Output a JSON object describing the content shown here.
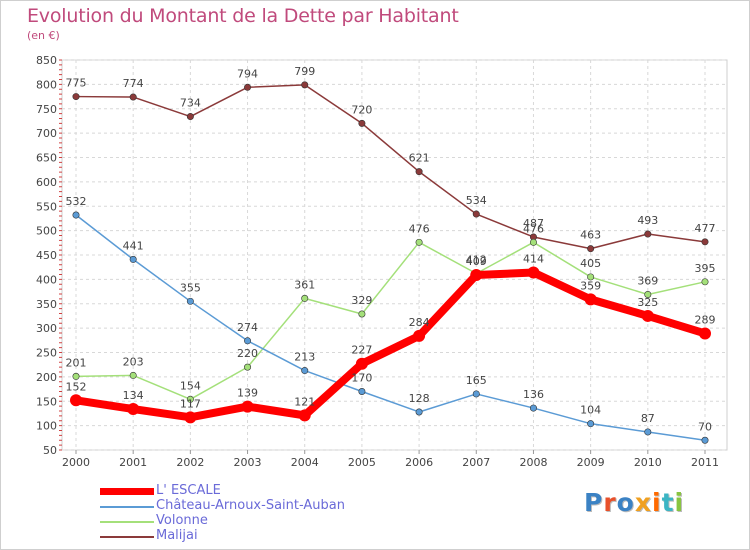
{
  "header": {
    "title": "Evolution du Montant de la Dette par Habitant",
    "subtitle": "(en €)"
  },
  "logo": {
    "text": "Proxiti"
  },
  "chart_data": {
    "type": "line",
    "title": "Evolution du Montant de la Dette par Habitant",
    "subtitle": "(en €)",
    "x": [
      "2000",
      "2001",
      "2002",
      "2003",
      "2004",
      "2005",
      "2006",
      "2007",
      "2008",
      "2009",
      "2010",
      "2011"
    ],
    "ylim": [
      50,
      850
    ],
    "yticks": [
      "50",
      "100",
      "150",
      "200",
      "250",
      "300",
      "350",
      "400",
      "450",
      "500",
      "550",
      "600",
      "650",
      "700",
      "750",
      "800",
      "850"
    ],
    "grid": true,
    "legend": "bottom-left",
    "series": [
      {
        "name": "L' ESCALE",
        "color": "#ff0000",
        "values": [
          152,
          134,
          117,
          139,
          121,
          227,
          284,
          409,
          414,
          359,
          325,
          289
        ],
        "labels": [
          "152",
          "134",
          "117",
          "139",
          "121",
          "227",
          "284",
          "409",
          "414",
          "359",
          "325",
          "289"
        ]
      },
      {
        "name": "Château-Arnoux-Saint-Auban",
        "color": "#5b9bd5",
        "values": [
          532,
          441,
          355,
          274,
          213,
          170,
          128,
          165,
          136,
          104,
          87,
          70
        ],
        "labels": [
          "532",
          "441",
          "355",
          "274",
          "213",
          "170",
          "128",
          "165",
          "136",
          "104",
          "87",
          "70"
        ]
      },
      {
        "name": "Volonne",
        "color": "#a4e07a",
        "values": [
          201,
          203,
          154,
          220,
          361,
          329,
          476,
          412,
          476,
          405,
          369,
          395
        ],
        "labels": [
          "201",
          "203",
          "154",
          "220",
          "361",
          "329",
          "476",
          "412",
          "476",
          "405",
          "369",
          "395"
        ]
      },
      {
        "name": "Malijai",
        "color": "#8b3a3a",
        "values": [
          775,
          774,
          734,
          794,
          799,
          720,
          621,
          534,
          487,
          463,
          493,
          477
        ],
        "labels": [
          "775",
          "774",
          "734",
          "794",
          "799",
          "720",
          "621",
          "534",
          "487",
          "463",
          "493",
          "477"
        ]
      }
    ]
  }
}
